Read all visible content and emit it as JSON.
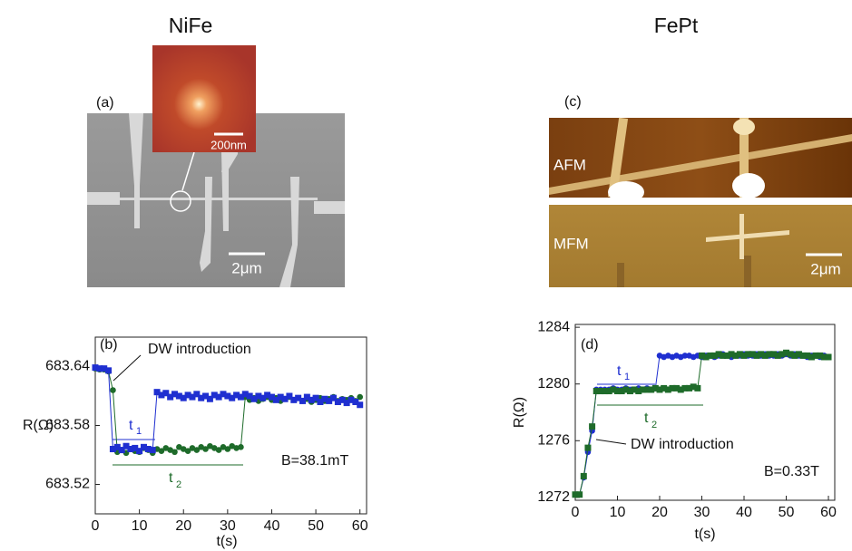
{
  "panels": {
    "left_title": "NiFe",
    "right_title": "FePt",
    "a_label": "(a)",
    "inset_scale": "200nm",
    "sem_scale": "2μm",
    "c_label": "(c)",
    "afm_label": "AFM",
    "mfm_label": "MFM",
    "afm_scale": "2μm"
  },
  "chart_data": [
    {
      "type": "line",
      "panel_label": "(b)",
      "xlabel": "t(s)",
      "ylabel": "R(Ω)",
      "annotation": "DW introduction",
      "t1": {
        "text": "t",
        "sub": "1"
      },
      "t2": {
        "text": "t",
        "sub": "2"
      },
      "field": "B=38.1mT",
      "xlim": [
        0,
        61.5
      ],
      "xticks": [
        0,
        10,
        20,
        30,
        40,
        50,
        60
      ],
      "ylim": [
        683.49,
        683.67
      ],
      "yticks": [
        683.52,
        683.58,
        683.64
      ],
      "x": [
        0,
        1,
        2,
        3,
        4,
        5,
        6,
        7,
        8,
        9,
        10,
        11,
        12,
        13,
        14,
        15,
        16,
        17,
        18,
        19,
        20,
        21,
        22,
        23,
        24,
        25,
        26,
        27,
        28,
        29,
        30,
        31,
        32,
        33,
        34,
        35,
        36,
        37,
        38,
        39,
        40,
        41,
        42,
        43,
        44,
        45,
        46,
        47,
        48,
        49,
        50,
        51,
        52,
        53,
        54,
        55,
        56,
        57,
        58,
        59,
        60
      ],
      "series": [
        {
          "color": "#1e6b2a",
          "marker": "circle",
          "values": [
            683.638,
            683.637,
            683.637,
            683.635,
            683.616,
            683.553,
            683.555,
            683.552,
            683.556,
            683.554,
            683.553,
            683.557,
            683.555,
            683.552,
            683.556,
            683.554,
            683.557,
            683.555,
            683.553,
            683.558,
            683.556,
            683.554,
            683.557,
            683.555,
            683.558,
            683.556,
            683.559,
            683.557,
            683.555,
            683.558,
            683.556,
            683.559,
            683.557,
            683.558,
            683.609,
            683.606,
            683.608,
            683.605,
            683.607,
            683.609,
            683.606,
            683.608,
            683.605,
            683.607,
            683.609,
            683.606,
            683.608,
            683.605,
            683.607,
            683.604,
            683.606,
            683.608,
            683.605,
            683.607,
            683.609,
            683.605,
            683.607,
            683.606,
            683.608,
            683.605,
            683.609
          ]
        },
        {
          "color": "#1f2fd0",
          "marker": "square",
          "values": [
            683.639,
            683.638,
            683.638,
            683.636,
            683.556,
            683.558,
            683.555,
            683.559,
            683.556,
            683.557,
            683.554,
            683.558,
            683.556,
            683.555,
            683.614,
            683.611,
            683.613,
            683.609,
            683.612,
            683.61,
            683.608,
            683.611,
            683.609,
            683.612,
            683.608,
            683.61,
            683.607,
            683.611,
            683.609,
            683.612,
            683.61,
            683.608,
            683.611,
            683.609,
            683.612,
            683.61,
            683.607,
            683.61,
            683.608,
            683.611,
            683.609,
            683.606,
            683.609,
            683.607,
            683.61,
            683.606,
            683.608,
            683.605,
            683.609,
            683.606,
            683.608,
            683.604,
            683.607,
            683.605,
            683.608,
            683.604,
            683.606,
            683.603,
            683.606,
            683.604,
            683.601
          ]
        }
      ]
    },
    {
      "type": "line",
      "panel_label": "(d)",
      "xlabel": "t(s)",
      "ylabel": "R(Ω)",
      "annotation": "DW introduction",
      "t1": {
        "text": "t",
        "sub": "1"
      },
      "t2": {
        "text": "t",
        "sub": "2"
      },
      "field": "B=0.33T",
      "xlim": [
        0,
        61.5
      ],
      "xticks": [
        0,
        10,
        20,
        30,
        40,
        50,
        60
      ],
      "ylim": [
        1271.8,
        1284.2
      ],
      "yticks": [
        1272,
        1276,
        1280,
        1284
      ],
      "x": [
        0,
        1,
        2,
        3,
        4,
        5,
        6,
        7,
        8,
        9,
        10,
        11,
        12,
        13,
        14,
        15,
        16,
        17,
        18,
        19,
        20,
        21,
        22,
        23,
        24,
        25,
        26,
        27,
        28,
        29,
        30,
        31,
        32,
        33,
        34,
        35,
        36,
        37,
        38,
        39,
        40,
        41,
        42,
        43,
        44,
        45,
        46,
        47,
        48,
        49,
        50,
        51,
        52,
        53,
        54,
        55,
        56,
        57,
        58,
        59,
        60
      ],
      "series": [
        {
          "color": "#1f2fd0",
          "marker": "circle",
          "values": [
            1272.2,
            1272.2,
            1273.4,
            1275.2,
            1276.7,
            1279.6,
            1279.6,
            1279.6,
            1279.6,
            1279.7,
            1279.6,
            1279.6,
            1279.7,
            1279.6,
            1279.6,
            1279.7,
            1279.6,
            1279.7,
            1279.6,
            1279.7,
            1282.0,
            1281.9,
            1282.0,
            1281.9,
            1282.0,
            1281.9,
            1282.0,
            1282.0,
            1281.9,
            1282.0,
            1281.9,
            1282.0,
            1282.0,
            1281.9,
            1282.0,
            1282.1,
            1282.0,
            1281.9,
            1282.0,
            1282.0,
            1282.1,
            1282.0,
            1282.0,
            1282.1,
            1282.0,
            1282.1,
            1282.0,
            1282.0,
            1282.1,
            1282.0,
            1282.1,
            1282.0,
            1282.1,
            1282.0,
            1282.0,
            1281.9,
            1282.0,
            1282.0,
            1281.9,
            1282.0,
            1281.9
          ]
        },
        {
          "color": "#1e6b2a",
          "marker": "square",
          "values": [
            1272.2,
            1272.2,
            1273.5,
            1275.5,
            1277.0,
            1279.5,
            1279.5,
            1279.5,
            1279.5,
            1279.6,
            1279.5,
            1279.5,
            1279.6,
            1279.5,
            1279.6,
            1279.5,
            1279.6,
            1279.6,
            1279.6,
            1279.7,
            1279.6,
            1279.7,
            1279.6,
            1279.7,
            1279.7,
            1279.6,
            1279.7,
            1279.7,
            1279.8,
            1279.7,
            1282.0,
            1281.9,
            1282.0,
            1282.0,
            1282.1,
            1282.0,
            1282.0,
            1282.1,
            1282.0,
            1282.1,
            1282.0,
            1282.1,
            1282.1,
            1282.0,
            1282.1,
            1282.0,
            1282.1,
            1282.1,
            1282.0,
            1282.1,
            1282.2,
            1282.1,
            1282.0,
            1282.1,
            1282.0,
            1282.0,
            1281.9,
            1282.0,
            1282.0,
            1281.9,
            1281.9
          ]
        }
      ]
    }
  ]
}
